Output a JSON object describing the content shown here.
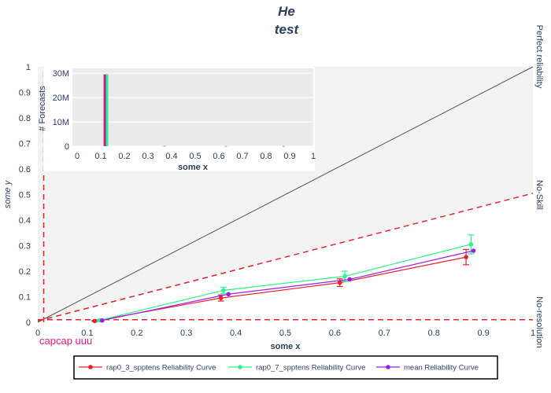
{
  "title_lines": [
    "He",
    "test"
  ],
  "caption": "capcap uuu",
  "side_labels": {
    "perfect": "Perfect reliability",
    "noskill": "No-Skill",
    "noresolution": "No-resolution"
  },
  "chart_data": [
    {
      "type": "line",
      "role": "reliability",
      "xlabel": "some x",
      "ylabel": "some y",
      "xlim": [
        0,
        1
      ],
      "ylim": [
        0,
        1
      ],
      "xticks": [
        "0",
        "0.1",
        "0.2",
        "0.3",
        "0.4",
        "0.5",
        "0.6",
        "0.7",
        "0.8",
        "0.9",
        "1"
      ],
      "yticks": [
        "0",
        "0.1",
        "0.2",
        "0.3",
        "0.4",
        "0.5",
        "0.6",
        "0.7",
        "0.8",
        "0.9",
        "1"
      ],
      "series": [
        {
          "name": "rap0_3_spptens Reliability Curve",
          "color": "#e8202a",
          "x": [
            0.115,
            0.37,
            0.61,
            0.865
          ],
          "y": [
            0.005,
            0.095,
            0.155,
            0.255
          ],
          "err": [
            0.002,
            0.012,
            0.015,
            0.03
          ]
        },
        {
          "name": "rap0_7_spptens Reliability Curve",
          "color": "#2ef58a",
          "x": [
            0.125,
            0.375,
            0.62,
            0.875
          ],
          "y": [
            0.008,
            0.125,
            0.18,
            0.305
          ],
          "err": [
            0.002,
            0.012,
            0.02,
            0.037
          ]
        },
        {
          "name": "mean Reliability Curve",
          "color": "#9b1ee8",
          "x": [
            0.13,
            0.385,
            0.63,
            0.88
          ],
          "y": [
            0.007,
            0.11,
            0.168,
            0.28
          ],
          "err": [
            0,
            0,
            0,
            0
          ]
        }
      ],
      "reference_lines": {
        "perfect": {
          "x": [
            0,
            1
          ],
          "y": [
            0,
            1
          ]
        },
        "noskill": {
          "x": [
            0,
            1
          ],
          "y": [
            0.005,
            0.505
          ]
        },
        "noresolution_y": 0.01,
        "climatology_x": 0.012
      },
      "legend_position": "bottom"
    },
    {
      "type": "bar",
      "role": "inset-histogram",
      "xlabel": "some x",
      "ylabel": "# Forecasts",
      "xlim": [
        -0.02,
        1
      ],
      "ylim": [
        0,
        32000000
      ],
      "xticks": [
        "0",
        "0.1",
        "0.2",
        "0.3",
        "0.4",
        "0.5",
        "0.6",
        "0.7",
        "0.8",
        "0.9",
        "1"
      ],
      "yticks": [
        "0",
        "10M",
        "20M",
        "30M"
      ],
      "bars": [
        {
          "x": 0.117,
          "value": 29500000,
          "color": "#e8202a"
        },
        {
          "x": 0.122,
          "value": 29500000,
          "color": "#9b1ee8"
        },
        {
          "x": 0.127,
          "value": 29500000,
          "color": "#2ef58a"
        },
        {
          "x": 0.37,
          "value": 150000,
          "color": "#888888"
        },
        {
          "x": 0.63,
          "value": 100000,
          "color": "#888888"
        },
        {
          "x": 0.875,
          "value": 80000,
          "color": "#888888"
        }
      ]
    }
  ]
}
